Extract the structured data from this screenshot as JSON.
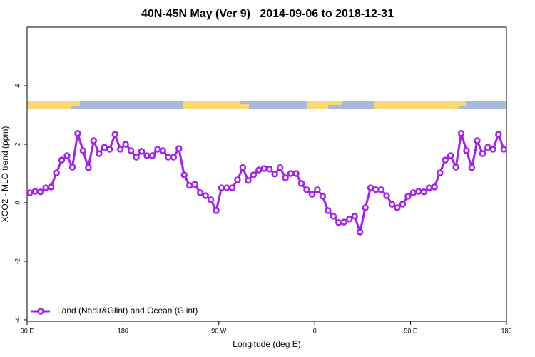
{
  "chart_data": {
    "type": "line",
    "title": "40N-45N May (Ver 9)   2014-09-06 to 2018-12-31",
    "x_label": "Longitude (deg E)",
    "y_label": "XCO2 - MLO trend (ppm)",
    "x": [
      92.5,
      97.5,
      102.5,
      107.5,
      112.5,
      117.5,
      122.5,
      127.5,
      132.5,
      137.5,
      142.5,
      147.5,
      152.5,
      157.5,
      162.5,
      167.5,
      172.5,
      177.5,
      182.5,
      187.5,
      192.5,
      197.5,
      202.5,
      207.5,
      212.5,
      217.5,
      222.5,
      227.5,
      232.5,
      237.5,
      242.5,
      247.5,
      252.5,
      257.5,
      262.5,
      267.5,
      272.5,
      277.5,
      282.5,
      287.5,
      292.5,
      297.5,
      302.5,
      307.5,
      312.5,
      317.5,
      322.5,
      327.5,
      332.5,
      337.5,
      342.5,
      347.5,
      352.5,
      357.5,
      362.5,
      367.5,
      372.5,
      377.5,
      382.5,
      387.5,
      392.5,
      397.5,
      402.5,
      407.5,
      412.5,
      417.5,
      422.5,
      427.5,
      432.5,
      437.5,
      442.5,
      447.5,
      452.5,
      457.5,
      462.5,
      467.5,
      472.5,
      477.5,
      482.5,
      487.5,
      492.5,
      497.5,
      502.5,
      507.5,
      512.5,
      517.5,
      522.5,
      527.5,
      532.5,
      537.5
    ],
    "series": [
      {
        "name": "Land (Nadir&Glint) and Ocean (Glint)",
        "color": "#a020f0",
        "values": [
          0.34,
          0.39,
          0.37,
          0.51,
          0.54,
          1.02,
          1.46,
          1.61,
          1.22,
          2.37,
          1.78,
          1.2,
          2.12,
          1.68,
          1.9,
          1.83,
          2.34,
          1.83,
          2.0,
          1.78,
          1.56,
          1.76,
          1.61,
          1.61,
          1.83,
          1.78,
          1.56,
          1.56,
          1.85,
          0.95,
          0.59,
          0.63,
          0.34,
          0.24,
          0.1,
          -0.27,
          0.51,
          0.51,
          0.51,
          0.78,
          1.2,
          0.76,
          0.95,
          1.12,
          1.17,
          1.15,
          0.98,
          1.2,
          0.85,
          1.0,
          1.0,
          0.66,
          0.44,
          0.29,
          0.44,
          0.22,
          -0.27,
          -0.46,
          -0.68,
          -0.66,
          -0.56,
          -0.46,
          -1.0,
          -0.17,
          0.51,
          0.44,
          0.44,
          0.24,
          -0.05,
          -0.17,
          -0.05,
          0.22,
          0.34,
          0.39,
          0.37,
          0.51,
          0.54,
          1.02,
          1.46,
          1.61,
          1.22,
          2.37,
          1.78,
          1.2,
          2.12,
          1.68,
          1.9,
          1.83,
          2.34,
          1.83
        ]
      }
    ],
    "xlim": [
      90,
      540
    ],
    "xticks": [
      {
        "value": 90,
        "label": "90 E"
      },
      180,
      {
        "value": 270,
        "label": "90 W"
      },
      {
        "value": 360,
        "label": "0"
      },
      {
        "value": 450,
        "label": "90 E"
      },
      {
        "value": 540,
        "label": "180"
      }
    ],
    "ylim": [
      -4.05,
      6.0
    ],
    "yticks": [
      -4,
      -2,
      0,
      2,
      4
    ],
    "legend": "bottom-left"
  }
}
